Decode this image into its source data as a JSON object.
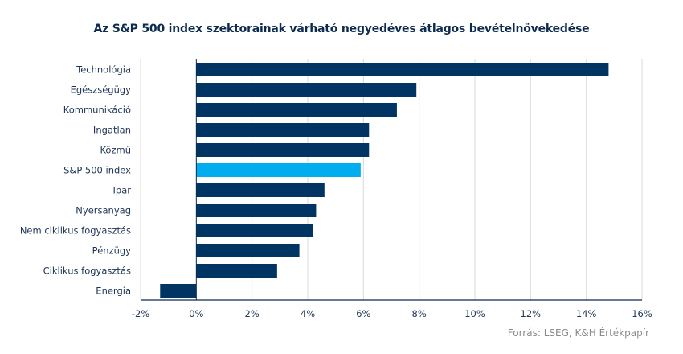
{
  "chart_data": {
    "type": "bar",
    "orientation": "horizontal",
    "title": "Az S&P 500 index szektorainak várható negyedéves átlagos bevételnövekedése",
    "xlabel": "",
    "ylabel": "",
    "xlim": [
      -2,
      16
    ],
    "xticks": [
      -2,
      0,
      2,
      4,
      6,
      8,
      10,
      12,
      14,
      16
    ],
    "xtick_labels": [
      "-2%",
      "0%",
      "2%",
      "4%",
      "6%",
      "8%",
      "10%",
      "12%",
      "14%",
      "16%"
    ],
    "grid": true,
    "categories": [
      "Technológia",
      "Egészségügy",
      "Kommunikáció",
      "Ingatlan",
      "Közmű",
      "S&P 500 index",
      "Ipar",
      "Nyersanyag",
      "Nem ciklikus fogyasztás",
      "Pénzügy",
      "Ciklikus fogyasztás",
      "Energia"
    ],
    "values": [
      14.8,
      7.9,
      7.2,
      6.2,
      6.2,
      5.9,
      4.6,
      4.3,
      4.2,
      3.7,
      2.9,
      -1.3
    ],
    "highlight": "S&P 500 index",
    "colors": {
      "default": "#003463",
      "highlight": "#00aeef",
      "grid": "#d9d9d9",
      "axis": "#0d2b4f"
    },
    "source": "Forrás: LSEG, K&H Értékpapír"
  }
}
